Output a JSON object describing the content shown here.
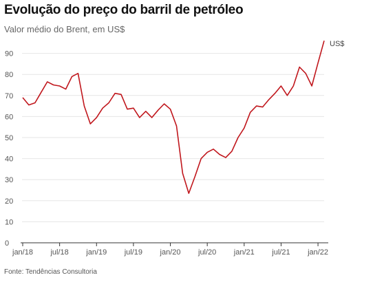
{
  "chart_data": {
    "type": "line",
    "title": "Evolução do preço do barril de petróleo",
    "subtitle": "Valor médio do Brent, em US$",
    "source": "Fonte: Tendências Consultoria",
    "unit_label": "US$",
    "ylim": [
      0,
      100
    ],
    "yticks": [
      0,
      10,
      20,
      30,
      40,
      50,
      60,
      70,
      80,
      90
    ],
    "grid": true,
    "x_tick_labels": [
      "jan/18",
      "jul/18",
      "jan/19",
      "jul/19",
      "jan/20",
      "jul/20",
      "jan/21",
      "jul/21",
      "jan/22"
    ],
    "line_color": "#c0161c",
    "series": [
      {
        "x": [
          "jan/18",
          "fev/18",
          "mar/18",
          "abr/18",
          "mai/18",
          "jun/18",
          "jul/18",
          "ago/18",
          "set/18",
          "out/18",
          "nov/18",
          "dez/18",
          "jan/19",
          "fev/19",
          "mar/19",
          "abr/19",
          "mai/19",
          "jun/19",
          "jul/19",
          "ago/19",
          "set/19",
          "out/19",
          "nov/19",
          "dez/19",
          "jan/20",
          "fev/20",
          "mar/20",
          "abr/20",
          "mai/20",
          "jun/20",
          "jul/20",
          "ago/20",
          "set/20",
          "out/20",
          "nov/20",
          "dez/20",
          "jan/21",
          "fev/21",
          "mar/21",
          "abr/21",
          "mai/21",
          "jun/21",
          "jul/21",
          "ago/21",
          "set/21",
          "out/21",
          "nov/21",
          "dez/21",
          "jan/22",
          "fev/22"
        ],
        "values": [
          69,
          65.5,
          66.5,
          71.5,
          76.5,
          75,
          74.5,
          73,
          79,
          80.5,
          65,
          56.5,
          59.5,
          64,
          66.5,
          71,
          70.5,
          63.5,
          64,
          59.5,
          62.5,
          59.5,
          63,
          66,
          63.5,
          55.5,
          33,
          23.5,
          31.5,
          40,
          43,
          44.5,
          42,
          40.5,
          43.5,
          50,
          54.5,
          62,
          65,
          64.5,
          68,
          71,
          74.5,
          70,
          74.5,
          83.5,
          80.5,
          74.5,
          85.5,
          96
        ]
      }
    ]
  }
}
